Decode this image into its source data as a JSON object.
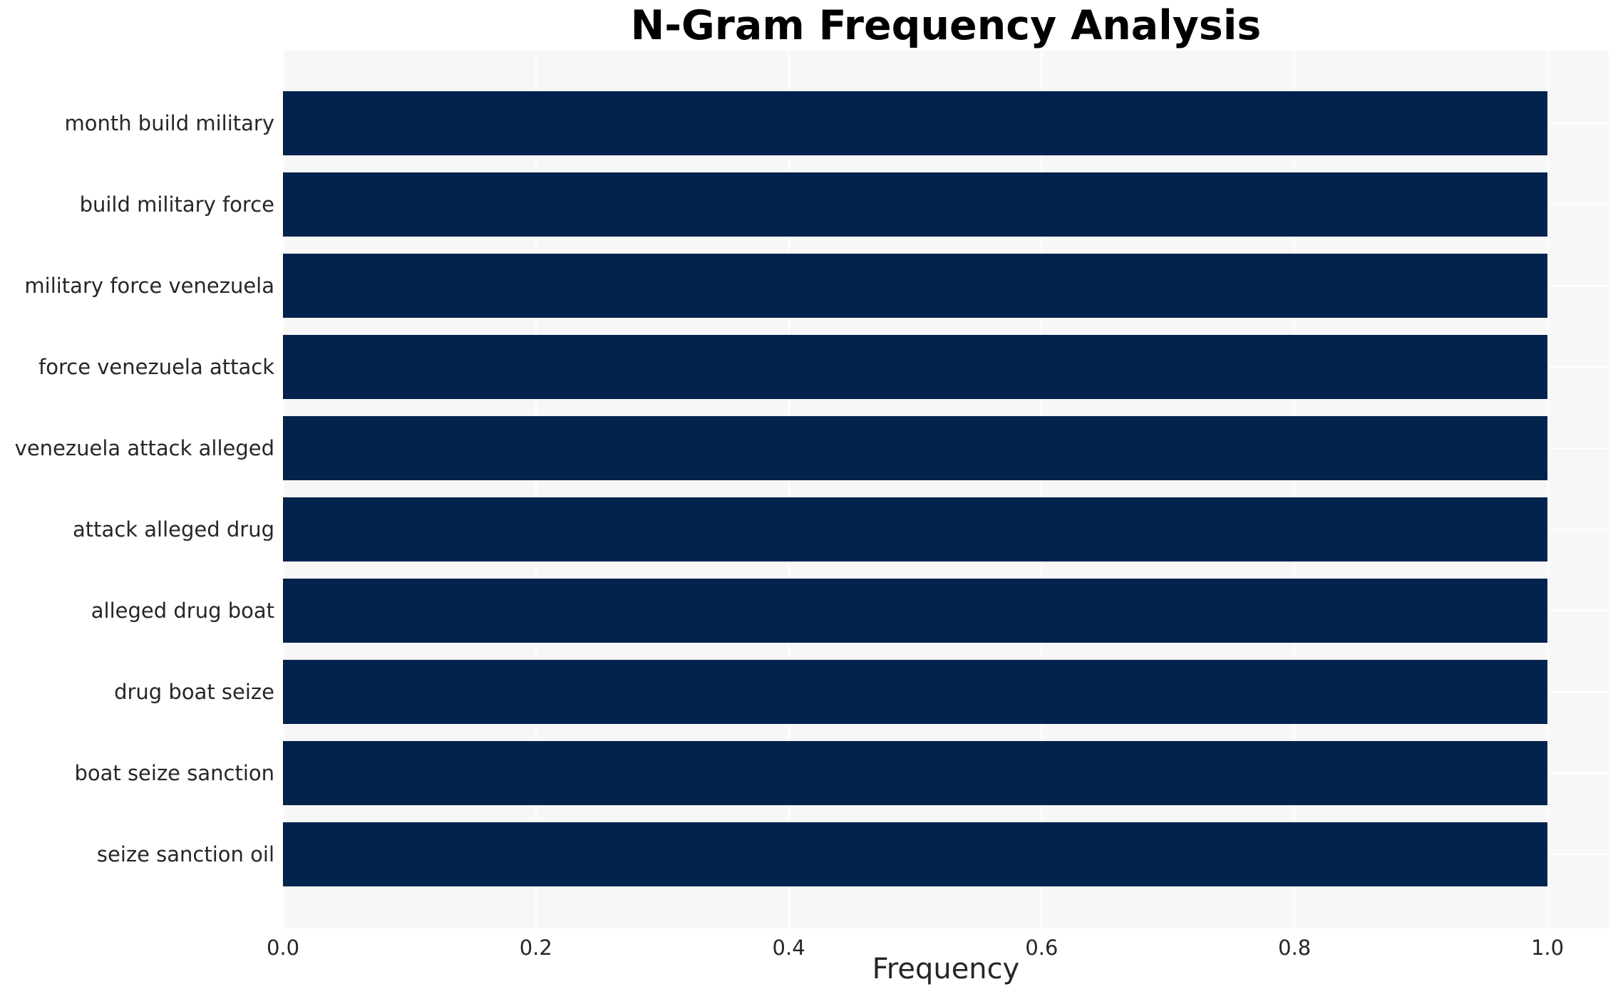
{
  "chart_data": {
    "type": "bar",
    "orientation": "horizontal",
    "title": "N-Gram Frequency Analysis",
    "xlabel": "Frequency",
    "ylabel": "",
    "categories": [
      "month build military",
      "build military force",
      "military force venezuela",
      "force venezuela attack",
      "venezuela attack alleged",
      "attack alleged drug",
      "alleged drug boat",
      "drug boat seize",
      "boat seize sanction",
      "seize sanction oil"
    ],
    "values": [
      1.0,
      1.0,
      1.0,
      1.0,
      1.0,
      1.0,
      1.0,
      1.0,
      1.0,
      1.0
    ],
    "xlim": [
      0.0,
      1.0
    ],
    "x_tick_labels": [
      "0.0",
      "0.2",
      "0.4",
      "0.6",
      "0.8",
      "1.0"
    ],
    "grid": true,
    "legend": false,
    "colors": {
      "bar": "#02234d",
      "plot_background": "#f7f7f7",
      "figure_background": "#ffffff",
      "gridline": "#ffffff",
      "tick_text": "#262626",
      "title_text": "#000000"
    }
  }
}
